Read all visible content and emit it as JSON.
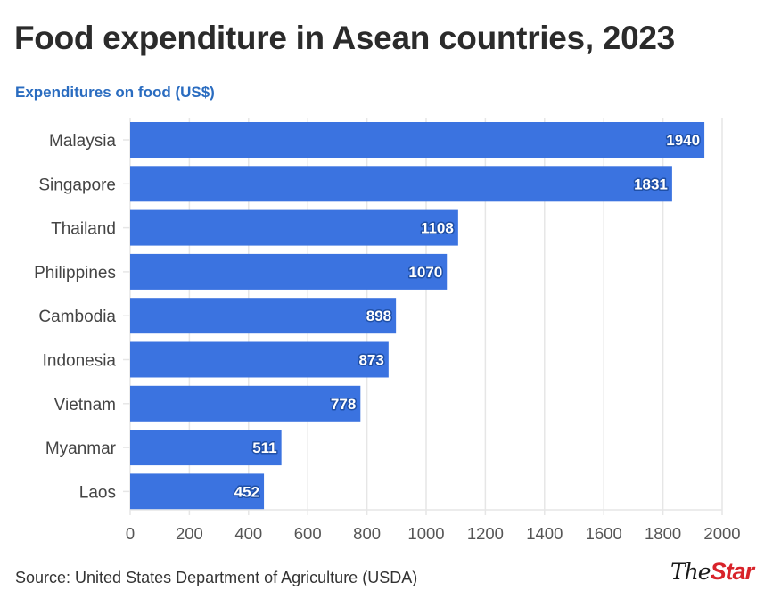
{
  "header": {
    "title": "Food expenditure in Asean countries, 2023",
    "subtitle": "Expenditures on food (US$)"
  },
  "footer": {
    "source": "Source: United States Department of Agriculture (USDA)",
    "logo_the": "The",
    "logo_star": "Star"
  },
  "colors": {
    "bar": "#3b73e0",
    "grid": "#e6e6e6",
    "title": "#2b2b2b",
    "subtitle": "#2a6cc0",
    "logo_red": "#d8232a"
  },
  "chart_data": {
    "type": "bar",
    "orientation": "horizontal",
    "title": "Food expenditure in Asean countries, 2023",
    "subtitle": "Expenditures on food (US$)",
    "xlabel": "",
    "ylabel": "",
    "categories": [
      "Malaysia",
      "Singapore",
      "Thailand",
      "Philippines",
      "Cambodia",
      "Indonesia",
      "Vietnam",
      "Myanmar",
      "Laos"
    ],
    "values": [
      1940,
      1831,
      1108,
      1070,
      898,
      873,
      778,
      511,
      452
    ],
    "xlim": [
      0,
      2000
    ],
    "xticks": [
      0,
      200,
      400,
      600,
      800,
      1000,
      1200,
      1400,
      1600,
      1800,
      2000
    ],
    "grid": true,
    "data_labels": true,
    "legend": "none"
  }
}
